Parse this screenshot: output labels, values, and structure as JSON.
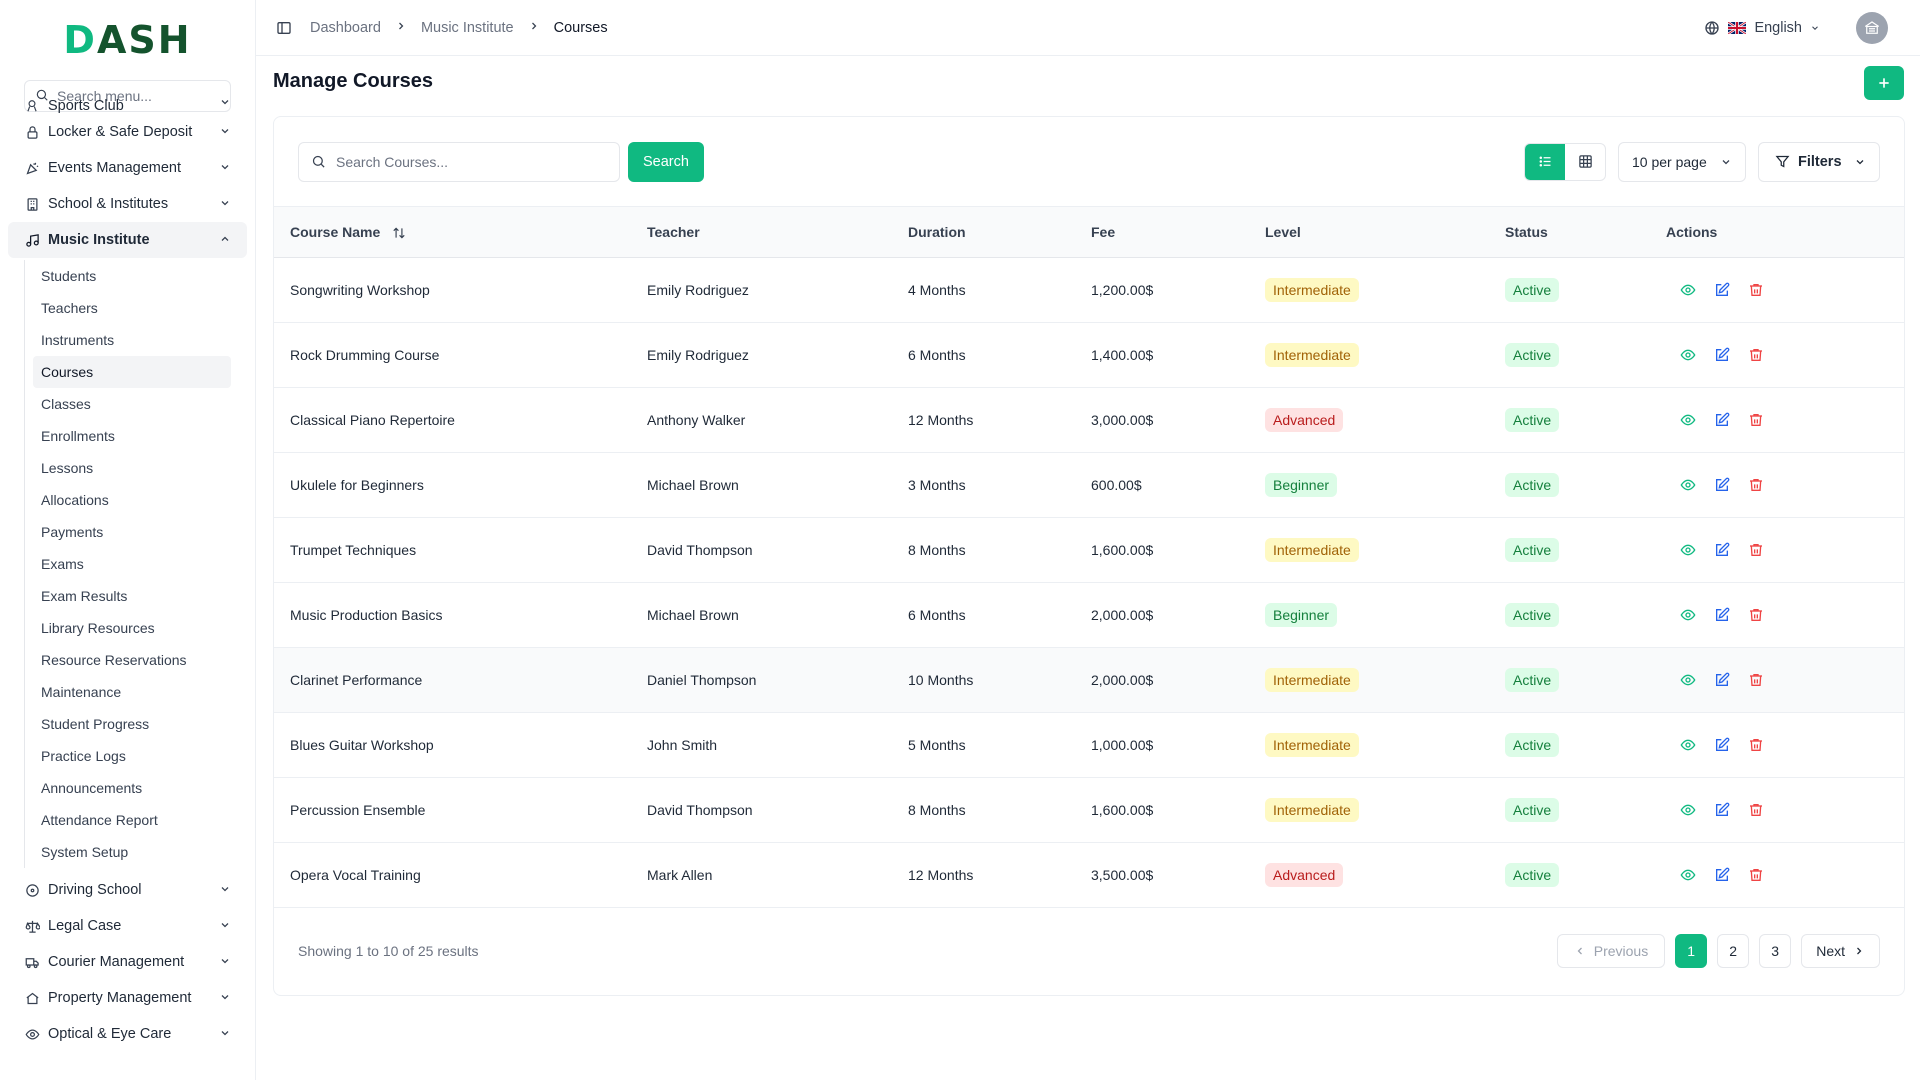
{
  "app": {
    "logo_text": "DASH",
    "accent": "#10b981"
  },
  "sidebar": {
    "search_placeholder": "Search menu...",
    "items_top": [
      {
        "label": "Sports Club",
        "icon": "sports-icon"
      },
      {
        "label": "Locker & Safe Deposit",
        "icon": "lock-icon"
      },
      {
        "label": "Events Management",
        "icon": "party-icon"
      },
      {
        "label": "School & Institutes",
        "icon": "building-icon"
      },
      {
        "label": "Music Institute",
        "icon": "music-icon"
      }
    ],
    "submenu": [
      "Students",
      "Teachers",
      "Instruments",
      "Courses",
      "Classes",
      "Enrollments",
      "Lessons",
      "Allocations",
      "Payments",
      "Exams",
      "Exam Results",
      "Library Resources",
      "Resource Reservations",
      "Maintenance",
      "Student Progress",
      "Practice Logs",
      "Announcements",
      "Attendance Report",
      "System Setup"
    ],
    "items_bottom": [
      {
        "label": "Driving School",
        "icon": "steering-icon"
      },
      {
        "label": "Legal Case",
        "icon": "scale-icon"
      },
      {
        "label": "Courier Management",
        "icon": "truck-icon"
      },
      {
        "label": "Property Management",
        "icon": "property-icon"
      },
      {
        "label": "Optical & Eye Care",
        "icon": "eye-icon"
      }
    ]
  },
  "topbar": {
    "breadcrumb": [
      "Dashboard",
      "Music Institute",
      "Courses"
    ],
    "language": "English"
  },
  "main": {
    "title": "Manage Courses",
    "search_placeholder": "Search Courses...",
    "search_label": "Search",
    "per_page": "10 per page",
    "filters_label": "Filters",
    "columns": [
      "Course Name",
      "Teacher",
      "Duration",
      "Fee",
      "Level",
      "Status",
      "Actions"
    ],
    "rows": [
      {
        "course": "Songwriting Workshop",
        "teacher": "Emily Rodriguez",
        "duration": "4 Months",
        "fee": "1,200.00$",
        "level": "Intermediate",
        "status": "Active"
      },
      {
        "course": "Rock Drumming Course",
        "teacher": "Emily Rodriguez",
        "duration": "6 Months",
        "fee": "1,400.00$",
        "level": "Intermediate",
        "status": "Active"
      },
      {
        "course": "Classical Piano Repertoire",
        "teacher": "Anthony Walker",
        "duration": "12 Months",
        "fee": "3,000.00$",
        "level": "Advanced",
        "status": "Active"
      },
      {
        "course": "Ukulele for Beginners",
        "teacher": "Michael Brown",
        "duration": "3 Months",
        "fee": "600.00$",
        "level": "Beginner",
        "status": "Active"
      },
      {
        "course": "Trumpet Techniques",
        "teacher": "David Thompson",
        "duration": "8 Months",
        "fee": "1,600.00$",
        "level": "Intermediate",
        "status": "Active"
      },
      {
        "course": "Music Production Basics",
        "teacher": "Michael Brown",
        "duration": "6 Months",
        "fee": "2,000.00$",
        "level": "Beginner",
        "status": "Active"
      },
      {
        "course": "Clarinet Performance",
        "teacher": "Daniel Thompson",
        "duration": "10 Months",
        "fee": "2,000.00$",
        "level": "Intermediate",
        "status": "Active"
      },
      {
        "course": "Blues Guitar Workshop",
        "teacher": "John Smith",
        "duration": "5 Months",
        "fee": "1,000.00$",
        "level": "Intermediate",
        "status": "Active"
      },
      {
        "course": "Percussion Ensemble",
        "teacher": "David Thompson",
        "duration": "8 Months",
        "fee": "1,600.00$",
        "level": "Intermediate",
        "status": "Active"
      },
      {
        "course": "Opera Vocal Training",
        "teacher": "Mark Allen",
        "duration": "12 Months",
        "fee": "3,500.00$",
        "level": "Advanced",
        "status": "Active"
      }
    ],
    "showing": "Showing 1 to 10 of 25 results",
    "pagination": {
      "previous": "Previous",
      "pages": [
        "1",
        "2",
        "3"
      ],
      "next": "Next"
    }
  }
}
